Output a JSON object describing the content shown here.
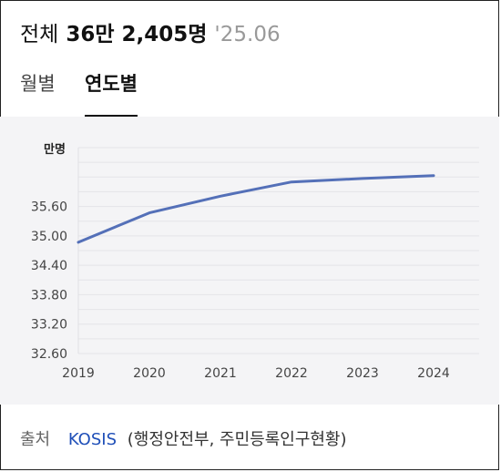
{
  "header": {
    "label": "전체",
    "value": "36만 2,405명",
    "date": "'25.06"
  },
  "tabs": [
    {
      "label": "월별",
      "active": false
    },
    {
      "label": "연도별",
      "active": true
    }
  ],
  "source": {
    "label": "출처",
    "link": "KOSIS",
    "detail": "(행정안전부, 주민등록인구현황)"
  },
  "chart_data": {
    "type": "line",
    "ylabel": "만명",
    "x": [
      "2019",
      "2020",
      "2021",
      "2022",
      "2023",
      "2024"
    ],
    "x_tick_labels": [
      "2019",
      "2020",
      "2021",
      "2022",
      "2023",
      "2024"
    ],
    "series": [
      {
        "values": [
          34.87,
          35.47,
          35.81,
          36.1,
          36.17,
          36.23
        ],
        "color": "#5470b8"
      }
    ],
    "yticks": [
      32.6,
      33.2,
      33.8,
      34.4,
      35.0,
      35.6
    ],
    "ytick_labels": [
      "32.60",
      "33.20",
      "33.80",
      "34.40",
      "35.00",
      "35.60"
    ],
    "ylim": [
      32.6,
      36.8
    ],
    "grid": true
  }
}
